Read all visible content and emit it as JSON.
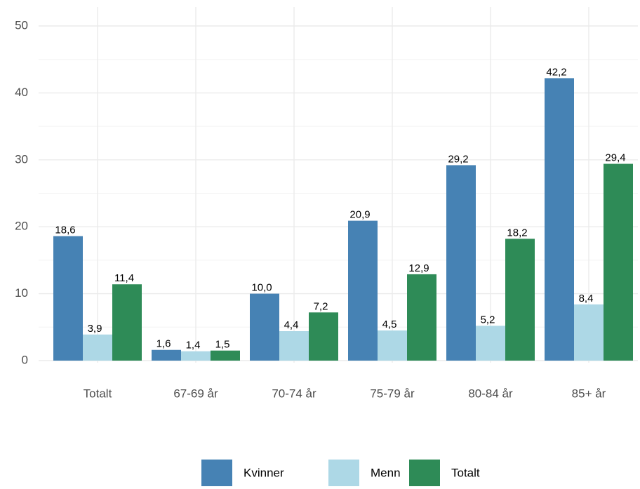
{
  "chart_data": {
    "type": "bar",
    "categories": [
      "Totalt",
      "67-69 år",
      "70-74 år",
      "75-79 år",
      "80-84 år",
      "85+ år"
    ],
    "series": [
      {
        "name": "Kvinner",
        "color": "#4682b4",
        "values": [
          18.6,
          1.6,
          10.0,
          20.9,
          29.2,
          42.2
        ],
        "value_labels": [
          "18,6",
          "1,6",
          "10,0",
          "20,9",
          "29,2",
          "42,2"
        ]
      },
      {
        "name": "Menn",
        "color": "#add8e6",
        "values": [
          3.9,
          1.4,
          4.4,
          4.5,
          5.2,
          8.4
        ],
        "value_labels": [
          "3,9",
          "1,4",
          "4,4",
          "4,5",
          "5,2",
          "8,4"
        ]
      },
      {
        "name": "Totalt",
        "color": "#2e8b57",
        "values": [
          11.4,
          1.5,
          7.2,
          12.9,
          18.2,
          29.4
        ],
        "value_labels": [
          "11,4",
          "1,5",
          "7,2",
          "12,9",
          "18,2",
          "29,4"
        ]
      }
    ],
    "ylim": [
      0,
      50
    ],
    "yticks": [
      0,
      10,
      20,
      30,
      40,
      50
    ],
    "grid": true,
    "legend": "bottom"
  }
}
